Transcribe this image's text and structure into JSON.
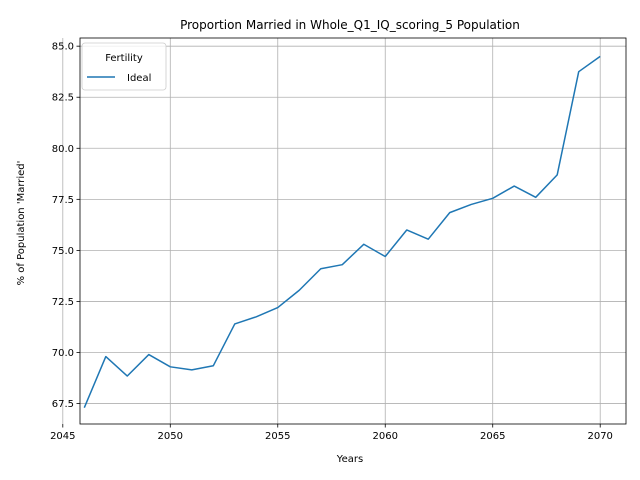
{
  "chart_data": {
    "type": "line",
    "title": "Proportion Married in Whole_Q1_IQ_scoring_5 Population",
    "xlabel": "Years",
    "ylabel": "% of Population 'Married'",
    "xlim": [
      2045.8,
      2071.2
    ],
    "ylim": [
      66.5,
      85.4
    ],
    "x_ticks": [
      2045,
      2050,
      2055,
      2060,
      2065,
      2070
    ],
    "y_ticks": [
      67.5,
      70.0,
      72.5,
      75.0,
      77.5,
      80.0,
      82.5,
      85.0
    ],
    "grid": true,
    "legend": {
      "title": "Fertility",
      "placement": "top-left"
    },
    "series": [
      {
        "name": "Ideal",
        "color": "#1f77b4",
        "x": [
          2046,
          2047,
          2048,
          2049,
          2050,
          2051,
          2052,
          2053,
          2054,
          2055,
          2056,
          2057,
          2058,
          2059,
          2060,
          2061,
          2062,
          2063,
          2064,
          2065,
          2066,
          2067,
          2068,
          2069,
          2070
        ],
        "y": [
          67.3,
          69.8,
          68.85,
          69.9,
          69.3,
          69.15,
          69.35,
          71.4,
          71.75,
          72.2,
          73.05,
          74.1,
          74.3,
          75.3,
          74.7,
          76.0,
          75.55,
          76.85,
          77.25,
          77.55,
          78.15,
          77.6,
          78.7,
          83.75,
          84.5
        ]
      }
    ]
  }
}
